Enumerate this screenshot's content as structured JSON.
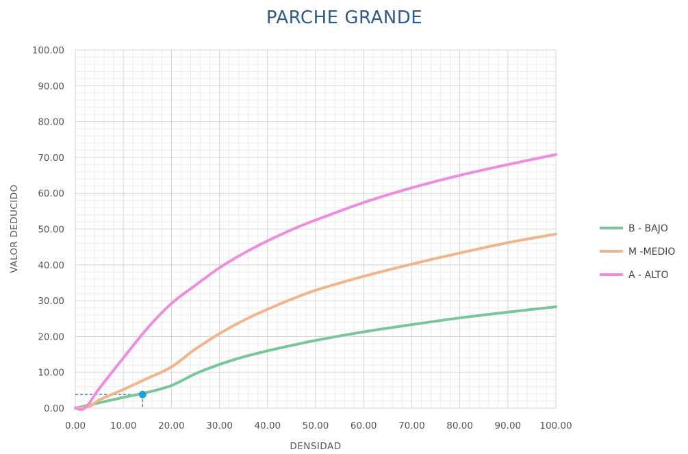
{
  "chart_data": {
    "type": "line",
    "title": "PARCHE GRANDE",
    "xlabel": "DENSIDAD",
    "ylabel": "VALOR DEDUCIDO",
    "xlim": [
      0,
      100
    ],
    "ylim": [
      0,
      100
    ],
    "x_ticks": [
      0,
      10,
      20,
      30,
      40,
      50,
      60,
      70,
      80,
      90,
      100
    ],
    "y_ticks": [
      0,
      10,
      20,
      30,
      40,
      50,
      60,
      70,
      80,
      90,
      100
    ],
    "x_tick_labels": [
      "0.00",
      "10.00",
      "20.00",
      "30.00",
      "40.00",
      "50.00",
      "60.00",
      "70.00",
      "80.00",
      "90.00",
      "100.00"
    ],
    "y_tick_labels": [
      "0.00",
      "10.00",
      "20.00",
      "30.00",
      "40.00",
      "50.00",
      "60.00",
      "70.00",
      "80.00",
      "90.00",
      "100.00"
    ],
    "grid": "major and minor",
    "legend_position": "right",
    "series": [
      {
        "name": "B - BAJO",
        "color": "#77c896",
        "x": [
          0,
          5,
          10,
          15,
          20,
          25,
          30,
          35,
          40,
          45,
          50,
          60,
          70,
          80,
          90,
          100
        ],
        "y": [
          0,
          1.5,
          3.0,
          4.4,
          6.3,
          9.6,
          12.2,
          14.3,
          16.0,
          17.5,
          18.9,
          21.3,
          23.3,
          25.2,
          26.8,
          28.3
        ]
      },
      {
        "name": "M -MEDIO",
        "color": "#f2b48a",
        "x": [
          0,
          3,
          5,
          10,
          15,
          20,
          25,
          30,
          35,
          40,
          45,
          50,
          60,
          70,
          80,
          90,
          100
        ],
        "y": [
          0,
          0.5,
          2.3,
          5.2,
          8.3,
          11.5,
          16.5,
          20.8,
          24.5,
          27.6,
          30.4,
          32.9,
          36.8,
          40.2,
          43.3,
          46.2,
          48.6
        ]
      },
      {
        "name": "A - ALTO",
        "color": "#ee8de0",
        "x": [
          0,
          2,
          5,
          10,
          15,
          20,
          25,
          30,
          35,
          40,
          45,
          50,
          60,
          70,
          80,
          90,
          100
        ],
        "y": [
          0,
          0,
          5.5,
          14.0,
          22.3,
          29.2,
          34.3,
          39.2,
          43.2,
          46.7,
          49.8,
          52.5,
          57.4,
          61.5,
          65.0,
          68.0,
          70.8
        ]
      }
    ],
    "annotation": {
      "marker": {
        "x": 14.0,
        "y": 3.8,
        "color": "#1fa2dc"
      },
      "dash_color": "#1f6fb0"
    }
  }
}
